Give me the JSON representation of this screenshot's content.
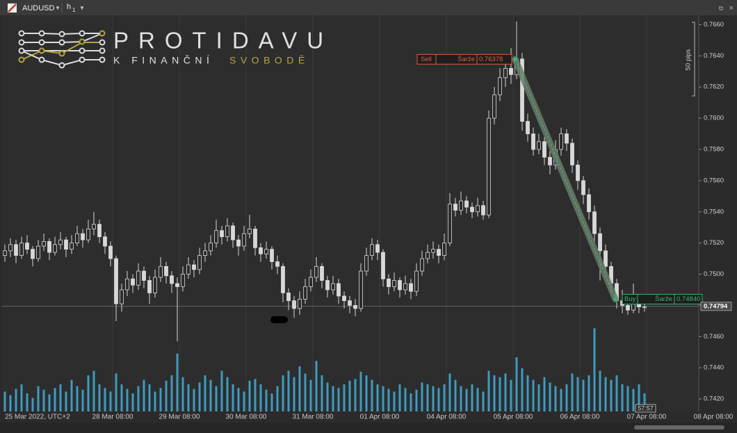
{
  "toolbar": {
    "symbol": "AUDUSD",
    "timeframe": [
      "h",
      "1"
    ]
  },
  "logo": {
    "title": "PROTIDAVU",
    "tagline": [
      "K FINANČNÍ",
      "SVOBODĚ"
    ]
  },
  "chart_data": {
    "type": "candlestick",
    "ylim": [
      0.7412,
      0.7666
    ],
    "yticks": [
      {
        "value": 0.766,
        "label": "0.7660"
      },
      {
        "value": 0.764,
        "label": "0.7640"
      },
      {
        "value": 0.762,
        "label": "0.7620"
      },
      {
        "value": 0.76,
        "label": "0.7600"
      },
      {
        "value": 0.758,
        "label": "0.7580"
      },
      {
        "value": 0.756,
        "label": "0.7560"
      },
      {
        "value": 0.754,
        "label": "0.7540"
      },
      {
        "value": 0.752,
        "label": "0.7520"
      },
      {
        "value": 0.75,
        "label": "0.7500"
      },
      {
        "value": 0.748,
        "label": "0.7480"
      },
      {
        "value": 0.746,
        "label": "0.7460"
      },
      {
        "value": 0.744,
        "label": "0.7440"
      },
      {
        "value": 0.742,
        "label": "0.7420"
      }
    ],
    "xticks": [
      "25 Mar 2022, UTC+2",
      "28 Mar 08:00",
      "29 Mar 08:00",
      "30 Mar 08:00",
      "31 Mar 08:00",
      "01 Apr 08:00",
      "04 Apr 08:00",
      "05 Apr 08:00",
      "06 Apr 08:00",
      "07 Apr 08:00",
      "08 Apr 08:00"
    ],
    "candle_color": "#d8d8d8",
    "volume_color": "#3d9cc0",
    "candles": [
      [
        0.7512,
        0.7519,
        0.7508,
        0.7515
      ],
      [
        0.7515,
        0.7523,
        0.7511,
        0.7519
      ],
      [
        0.7519,
        0.7522,
        0.7507,
        0.7512
      ],
      [
        0.7512,
        0.7524,
        0.751,
        0.752
      ],
      [
        0.752,
        0.7525,
        0.7513,
        0.7516
      ],
      [
        0.7516,
        0.7518,
        0.7505,
        0.751
      ],
      [
        0.751,
        0.7522,
        0.7508,
        0.7518
      ],
      [
        0.7518,
        0.7526,
        0.7515,
        0.7521
      ],
      [
        0.7521,
        0.7523,
        0.7509,
        0.7514
      ],
      [
        0.7514,
        0.7524,
        0.7512,
        0.7519
      ],
      [
        0.7519,
        0.7527,
        0.7516,
        0.7522
      ],
      [
        0.7522,
        0.7524,
        0.7511,
        0.7516
      ],
      [
        0.7516,
        0.7525,
        0.7513,
        0.752
      ],
      [
        0.752,
        0.7531,
        0.7518,
        0.7526
      ],
      [
        0.7526,
        0.7529,
        0.7517,
        0.7522
      ],
      [
        0.7522,
        0.7535,
        0.752,
        0.7529
      ],
      [
        0.7529,
        0.754,
        0.7525,
        0.7532
      ],
      [
        0.7532,
        0.7535,
        0.752,
        0.7524
      ],
      [
        0.7524,
        0.7527,
        0.7513,
        0.7518
      ],
      [
        0.7518,
        0.7521,
        0.7505,
        0.751
      ],
      [
        0.751,
        0.7512,
        0.747,
        0.7481
      ],
      [
        0.7481,
        0.7494,
        0.7476,
        0.749
      ],
      [
        0.749,
        0.7502,
        0.7486,
        0.7497
      ],
      [
        0.7497,
        0.75,
        0.7488,
        0.7493
      ],
      [
        0.7493,
        0.7507,
        0.749,
        0.7502
      ],
      [
        0.7502,
        0.7505,
        0.7491,
        0.7496
      ],
      [
        0.7496,
        0.7499,
        0.7481,
        0.7488
      ],
      [
        0.7488,
        0.7503,
        0.7485,
        0.7498
      ],
      [
        0.7498,
        0.7511,
        0.7495,
        0.7505
      ],
      [
        0.7505,
        0.7508,
        0.7494,
        0.7499
      ],
      [
        0.7499,
        0.7502,
        0.7488,
        0.7494
      ],
      [
        0.7494,
        0.7498,
        0.7457,
        0.7492
      ],
      [
        0.7492,
        0.7505,
        0.7489,
        0.75
      ],
      [
        0.75,
        0.7511,
        0.7497,
        0.7506
      ],
      [
        0.7506,
        0.7509,
        0.7498,
        0.7503
      ],
      [
        0.7503,
        0.7517,
        0.75,
        0.7512
      ],
      [
        0.7512,
        0.752,
        0.7508,
        0.7515
      ],
      [
        0.7515,
        0.7525,
        0.7512,
        0.752
      ],
      [
        0.752,
        0.7535,
        0.7517,
        0.7528
      ],
      [
        0.7528,
        0.7531,
        0.7519,
        0.7524
      ],
      [
        0.7524,
        0.7536,
        0.7521,
        0.7531
      ],
      [
        0.7531,
        0.7533,
        0.7517,
        0.7522
      ],
      [
        0.7522,
        0.7525,
        0.7512,
        0.7518
      ],
      [
        0.7518,
        0.7531,
        0.7515,
        0.7526
      ],
      [
        0.7526,
        0.7538,
        0.7523,
        0.7529
      ],
      [
        0.7529,
        0.7531,
        0.7512,
        0.7517
      ],
      [
        0.7517,
        0.752,
        0.7508,
        0.7513
      ],
      [
        0.7513,
        0.7521,
        0.751,
        0.7516
      ],
      [
        0.7516,
        0.7518,
        0.7503,
        0.7508
      ],
      [
        0.7508,
        0.7512,
        0.75,
        0.7505
      ],
      [
        0.7505,
        0.7507,
        0.7482,
        0.7488
      ],
      [
        0.7488,
        0.7491,
        0.7477,
        0.7483
      ],
      [
        0.7483,
        0.7486,
        0.7472,
        0.7478
      ],
      [
        0.7478,
        0.7489,
        0.7474,
        0.7484
      ],
      [
        0.7484,
        0.7497,
        0.7481,
        0.7492
      ],
      [
        0.7492,
        0.7503,
        0.7489,
        0.7498
      ],
      [
        0.7498,
        0.7511,
        0.7495,
        0.7505
      ],
      [
        0.7505,
        0.7507,
        0.7491,
        0.7496
      ],
      [
        0.7496,
        0.7499,
        0.7485,
        0.749
      ],
      [
        0.749,
        0.7499,
        0.7487,
        0.7494
      ],
      [
        0.7494,
        0.7497,
        0.7481,
        0.7486
      ],
      [
        0.7486,
        0.7489,
        0.7478,
        0.7483
      ],
      [
        0.7483,
        0.7486,
        0.7475,
        0.748
      ],
      [
        0.748,
        0.7484,
        0.7473,
        0.7478
      ],
      [
        0.7478,
        0.7507,
        0.7476,
        0.7502
      ],
      [
        0.7502,
        0.7517,
        0.7499,
        0.7512
      ],
      [
        0.7512,
        0.7523,
        0.7509,
        0.7519
      ],
      [
        0.7519,
        0.7522,
        0.7509,
        0.7514
      ],
      [
        0.7514,
        0.7516,
        0.7492,
        0.7497
      ],
      [
        0.7497,
        0.75,
        0.7487,
        0.7492
      ],
      [
        0.7492,
        0.7501,
        0.7489,
        0.7496
      ],
      [
        0.7496,
        0.7498,
        0.7485,
        0.749
      ],
      [
        0.749,
        0.7499,
        0.7487,
        0.7494
      ],
      [
        0.7494,
        0.7497,
        0.7484,
        0.7489
      ],
      [
        0.7489,
        0.7507,
        0.7486,
        0.7502
      ],
      [
        0.7502,
        0.7515,
        0.7499,
        0.751
      ],
      [
        0.751,
        0.7519,
        0.7507,
        0.7514
      ],
      [
        0.7514,
        0.7521,
        0.751,
        0.7516
      ],
      [
        0.7516,
        0.7519,
        0.7507,
        0.7512
      ],
      [
        0.7512,
        0.7526,
        0.7509,
        0.752
      ],
      [
        0.752,
        0.7552,
        0.7518,
        0.7545
      ],
      [
        0.7545,
        0.7549,
        0.7537,
        0.7541
      ],
      [
        0.7541,
        0.7553,
        0.7538,
        0.7547
      ],
      [
        0.7547,
        0.755,
        0.7539,
        0.7543
      ],
      [
        0.7543,
        0.7546,
        0.7536,
        0.754
      ],
      [
        0.754,
        0.7549,
        0.7537,
        0.7544
      ],
      [
        0.7544,
        0.7547,
        0.7535,
        0.7538
      ],
      [
        0.7538,
        0.7605,
        0.7536,
        0.76
      ],
      [
        0.76,
        0.762,
        0.7596,
        0.7615
      ],
      [
        0.7615,
        0.7632,
        0.7611,
        0.7626
      ],
      [
        0.7626,
        0.764,
        0.762,
        0.7632
      ],
      [
        0.7632,
        0.7645,
        0.7622,
        0.7628
      ],
      [
        0.7628,
        0.7662,
        0.7625,
        0.7638
      ],
      [
        0.7638,
        0.7642,
        0.7592,
        0.7598
      ],
      [
        0.7598,
        0.7603,
        0.7585,
        0.759
      ],
      [
        0.759,
        0.7594,
        0.7576,
        0.758
      ],
      [
        0.758,
        0.759,
        0.7577,
        0.7585
      ],
      [
        0.7585,
        0.7588,
        0.757,
        0.7575
      ],
      [
        0.7575,
        0.7579,
        0.7564,
        0.757
      ],
      [
        0.757,
        0.7586,
        0.7567,
        0.758
      ],
      [
        0.758,
        0.7594,
        0.7576,
        0.759
      ],
      [
        0.759,
        0.7593,
        0.7579,
        0.7584
      ],
      [
        0.7584,
        0.7587,
        0.7565,
        0.757
      ],
      [
        0.757,
        0.7573,
        0.7554,
        0.756
      ],
      [
        0.756,
        0.7563,
        0.7545,
        0.7551
      ],
      [
        0.7551,
        0.7555,
        0.7535,
        0.754
      ],
      [
        0.754,
        0.7544,
        0.752,
        0.7526
      ],
      [
        0.7526,
        0.753,
        0.7496,
        0.7515
      ],
      [
        0.7515,
        0.7519,
        0.75,
        0.7505
      ],
      [
        0.7505,
        0.7508,
        0.7489,
        0.7494
      ],
      [
        0.7494,
        0.7497,
        0.7478,
        0.7483
      ],
      [
        0.7483,
        0.749,
        0.7475,
        0.748
      ],
      [
        0.748,
        0.7487,
        0.7474,
        0.7477
      ],
      [
        0.7477,
        0.7494,
        0.7475,
        0.7482
      ],
      [
        0.7482,
        0.7486,
        0.7475,
        0.7479
      ],
      [
        0.7479,
        0.7483,
        0.7476,
        0.7479
      ]
    ],
    "volumes": [
      22,
      18,
      25,
      30,
      20,
      15,
      28,
      24,
      19,
      26,
      30,
      22,
      35,
      28,
      24,
      40,
      45,
      30,
      26,
      22,
      42,
      30,
      25,
      20,
      28,
      35,
      30,
      22,
      26,
      34,
      40,
      64,
      38,
      30,
      25,
      32,
      40,
      35,
      28,
      45,
      38,
      30,
      26,
      22,
      34,
      36,
      30,
      24,
      20,
      28,
      40,
      45,
      38,
      50,
      42,
      35,
      56,
      40,
      32,
      28,
      26,
      30,
      34,
      36,
      44,
      40,
      35,
      30,
      28,
      25,
      22,
      30,
      26,
      20,
      24,
      32,
      30,
      28,
      26,
      30,
      42,
      35,
      28,
      25,
      30,
      26,
      22,
      45,
      40,
      38,
      42,
      35,
      60,
      48,
      40,
      35,
      30,
      38,
      32,
      28,
      25,
      30,
      42,
      38,
      35,
      40,
      92,
      45,
      38,
      35,
      40,
      30,
      28,
      25,
      30,
      20
    ],
    "last_price": 0.74794,
    "sell": {
      "side": "Sell",
      "lot_label": "Šarže",
      "price": 0.76378
    },
    "buy": {
      "side": "Buy",
      "lot_label": "Šarže",
      "price": {
        "value": 0.7484,
        "label": "0.74840"
      }
    },
    "ruler_label": "50 pips",
    "countdown": "57:57"
  }
}
